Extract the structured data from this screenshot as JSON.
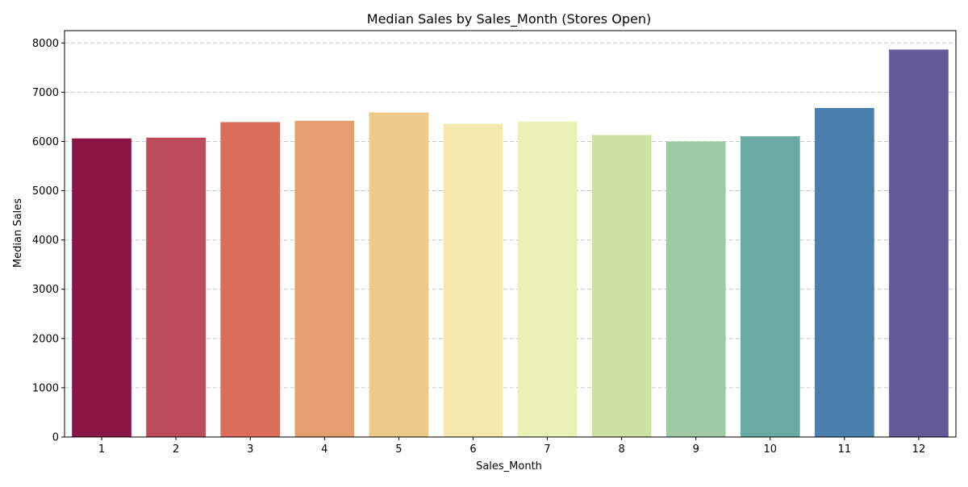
{
  "chart_data": {
    "type": "bar",
    "title": "Median Sales by Sales_Month (Stores Open)",
    "xlabel": "Sales_Month",
    "ylabel": "Median Sales",
    "categories": [
      "1",
      "2",
      "3",
      "4",
      "5",
      "6",
      "7",
      "8",
      "9",
      "10",
      "11",
      "12"
    ],
    "values": [
      6062,
      6078,
      6393,
      6420,
      6589,
      6356,
      6403,
      6130,
      6001,
      6107,
      6680,
      7866
    ],
    "ylim": [
      0,
      8250
    ],
    "yticks": [
      0,
      1000,
      2000,
      3000,
      4000,
      5000,
      6000,
      7000,
      8000
    ],
    "grid": "horizontal dashed",
    "bar_colors": [
      "#8b1545",
      "#bc4b5c",
      "#da6e5a",
      "#e69e6e",
      "#edc98a",
      "#f4e8ad",
      "#ebf2b7",
      "#cde1a3",
      "#9ecaa3",
      "#69aba2",
      "#4a7fad",
      "#645a97"
    ],
    "grid_color": "#c7c7c7",
    "axis_color": "#000000"
  }
}
